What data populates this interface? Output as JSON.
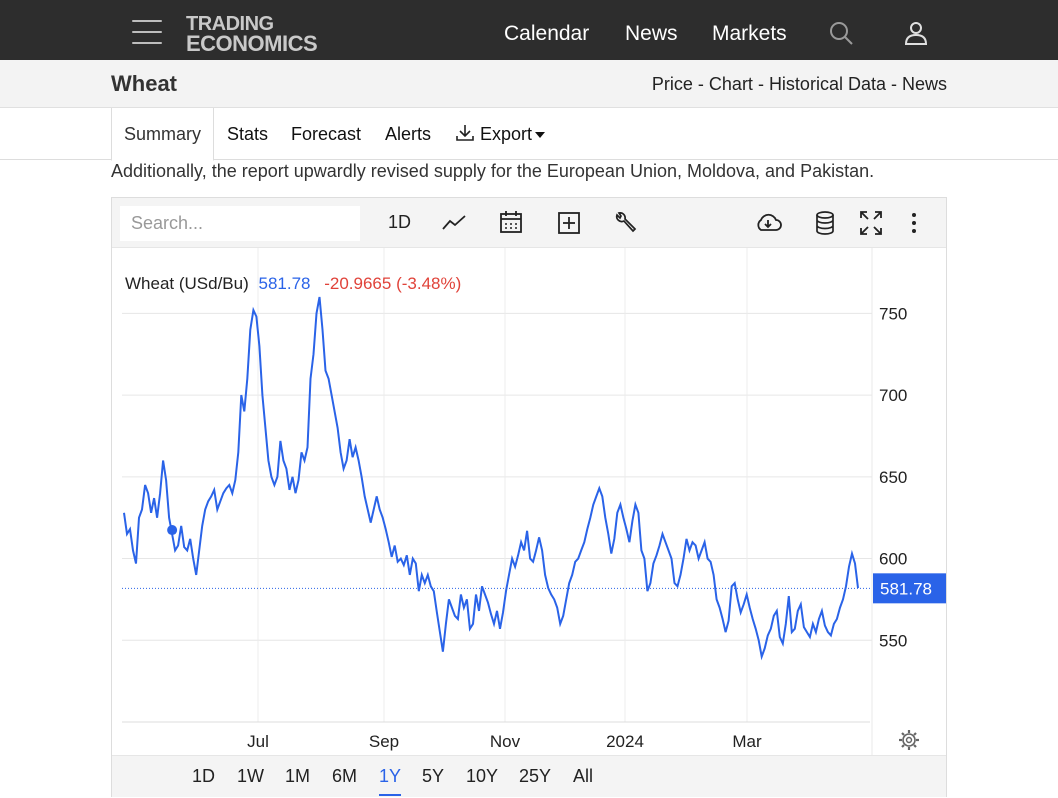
{
  "header": {
    "logo_line1": "TRADING",
    "logo_line2": "ECONOMICS",
    "nav": [
      "Calendar",
      "News",
      "Markets"
    ]
  },
  "subheader": {
    "title": "Wheat",
    "links": [
      "Price",
      "Chart",
      "Historical Data",
      "News"
    ],
    "separator": " - "
  },
  "tabs": {
    "summary": "Summary",
    "stats": "Stats",
    "forecast": "Forecast",
    "alerts": "Alerts",
    "export": "Export"
  },
  "paragraph": "Additionally, the report upwardly revised supply for the European Union, Moldova, and Pakistan.",
  "toolbar": {
    "search_placeholder": "Search...",
    "interval": "1D"
  },
  "legend": {
    "name": "Wheat (USd/Bu)",
    "price": "581.78",
    "change": "-20.9665 (-3.48%)"
  },
  "ranges": [
    "1D",
    "1W",
    "1M",
    "6M",
    "1Y",
    "5Y",
    "10Y",
    "25Y",
    "All"
  ],
  "active_range": "1Y",
  "colors": {
    "line": "#2a63e8",
    "change": "#e0433a",
    "accent": "#2a63e8",
    "header_bg": "#2d2d2d"
  },
  "chart_data": {
    "type": "line",
    "series_name": "Wheat (USd/Bu)",
    "y_ticks": [
      550,
      600,
      650,
      700,
      750
    ],
    "x_ticks": [
      "Jul",
      "Sep",
      "Nov",
      "2024",
      "Mar"
    ],
    "ylim": [
      500,
      790
    ],
    "last_value": 581.78,
    "last_value_label": "581.78",
    "grid": true,
    "values": [
      628,
      615,
      618,
      605,
      597,
      625,
      630,
      645,
      640,
      628,
      637,
      625,
      640,
      660,
      648,
      625,
      615,
      605,
      608,
      620,
      607,
      605,
      612,
      600,
      590,
      605,
      620,
      630,
      635,
      638,
      642,
      630,
      635,
      640,
      643,
      645,
      640,
      648,
      665,
      700,
      690,
      710,
      740,
      752,
      748,
      730,
      700,
      680,
      660,
      650,
      645,
      650,
      672,
      660,
      655,
      642,
      650,
      640,
      648,
      665,
      660,
      668,
      710,
      725,
      750,
      760,
      740,
      715,
      710,
      700,
      690,
      680,
      665,
      655,
      660,
      673,
      662,
      668,
      660,
      650,
      638,
      630,
      622,
      630,
      638,
      630,
      625,
      618,
      610,
      601,
      608,
      598,
      600,
      596,
      602,
      590,
      600,
      597,
      580,
      590,
      585,
      590,
      583,
      580,
      567,
      555,
      543,
      560,
      575,
      570,
      565,
      563,
      578,
      570,
      575,
      557,
      560,
      578,
      568,
      583,
      578,
      573,
      566,
      560,
      568,
      557,
      567,
      580,
      590,
      600,
      595,
      602,
      610,
      605,
      617,
      600,
      598,
      605,
      613,
      605,
      590,
      582,
      578,
      575,
      570,
      560,
      565,
      575,
      585,
      590,
      598,
      600,
      605,
      610,
      618,
      625,
      633,
      638,
      643,
      638,
      625,
      615,
      603,
      612,
      628,
      633,
      625,
      618,
      610,
      623,
      633,
      628,
      605,
      600,
      580,
      585,
      597,
      602,
      608,
      615,
      610,
      605,
      600,
      585,
      583,
      590,
      600,
      612,
      605,
      610,
      608,
      600,
      605,
      610,
      600,
      598,
      590,
      575,
      570,
      563,
      555,
      562,
      583,
      585,
      575,
      567,
      572,
      578,
      570,
      563,
      557,
      550,
      540,
      545,
      553,
      557,
      565,
      568,
      552,
      548,
      560,
      577,
      555,
      557,
      568,
      572,
      558,
      555,
      552,
      560,
      555,
      563,
      568,
      559,
      555,
      553,
      560,
      563,
      570,
      575,
      583,
      595,
      603,
      597,
      582
    ]
  }
}
